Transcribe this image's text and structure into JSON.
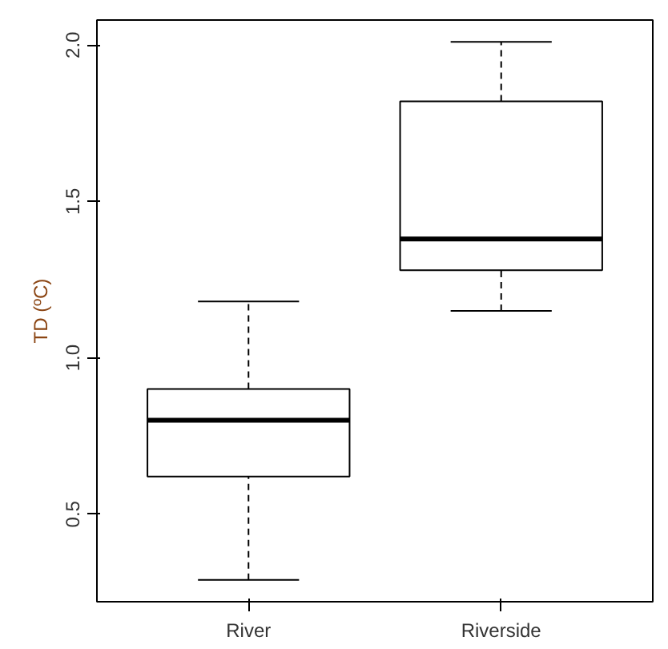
{
  "chart_data": {
    "type": "box",
    "ylabel": "TD (ºC)",
    "categories": [
      "River",
      "Riverside"
    ],
    "boxes": [
      {
        "low": 0.29,
        "q1": 0.62,
        "median": 0.8,
        "q3": 0.9,
        "high": 1.18
      },
      {
        "low": 1.15,
        "q1": 1.28,
        "median": 1.38,
        "q3": 1.82,
        "high": 2.01
      }
    ],
    "ylim": [
      0.22,
      2.08
    ],
    "yticks": [
      0.5,
      {
        "value": 1,
        "label": "1.0"
      },
      1.5,
      {
        "value": 2,
        "label": "2.0"
      }
    ],
    "grid": false
  }
}
